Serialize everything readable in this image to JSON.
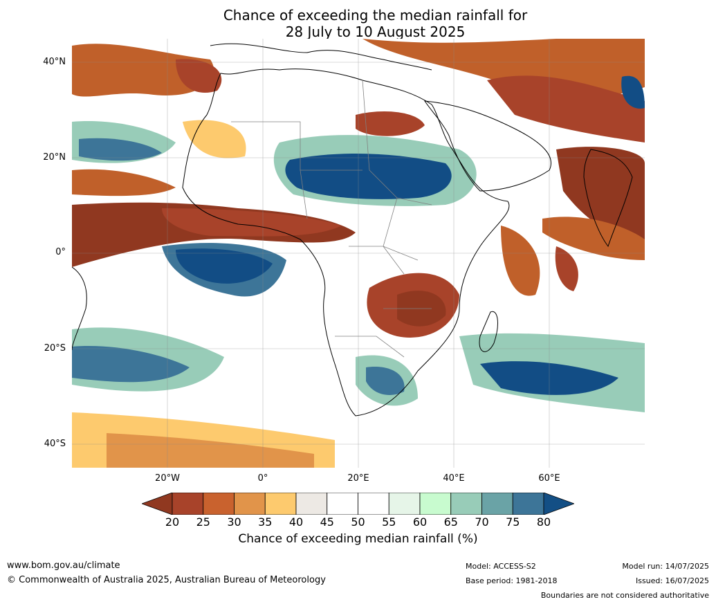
{
  "title": {
    "line1": "Chance of exceeding the median rainfall for",
    "line2": "28 July to 10 August 2025"
  },
  "map": {
    "lat_labels": [
      "40°N",
      "20°N",
      "0°",
      "20°S",
      "40°S"
    ],
    "lon_labels": [
      "20°W",
      "0°",
      "20°E",
      "40°E",
      "60°E"
    ],
    "extent": {
      "lon_min": -40,
      "lon_max": 80,
      "lat_min": -45,
      "lat_max": 45
    },
    "description_colors": {
      "dry_extreme": "#8c2d1a",
      "dry": "#c0602a",
      "neutral": "#ede8e2",
      "wet": "#9bcfb8",
      "wet_extreme": "#124d85"
    }
  },
  "colorbar": {
    "ticks": [
      "20",
      "25",
      "30",
      "35",
      "40",
      "45",
      "50",
      "55",
      "60",
      "65",
      "70",
      "75",
      "80"
    ],
    "colors": [
      "#903820",
      "#a8432a",
      "#c9622e",
      "#e1944a",
      "#fdca6e",
      "#ede9e4",
      "#ffffff",
      "#ffffff",
      "#e6f5e8",
      "#c8fbcf",
      "#98ccb8",
      "#6aa3a6",
      "#3d7598",
      "#134f85"
    ],
    "label": "Chance of exceeding median rainfall (%)"
  },
  "footer": {
    "website": "www.bom.gov.au/climate",
    "copyright": "© Commonwealth of Australia 2025, Australian Bureau of Meteorology",
    "model": "Model: ACCESS-S2",
    "base_period": "Base period: 1981-2018",
    "model_run": "Model run: 14/07/2025",
    "issued": "Issued: 16/07/2025",
    "disclaimer": "Boundaries are not considered authoritative"
  }
}
